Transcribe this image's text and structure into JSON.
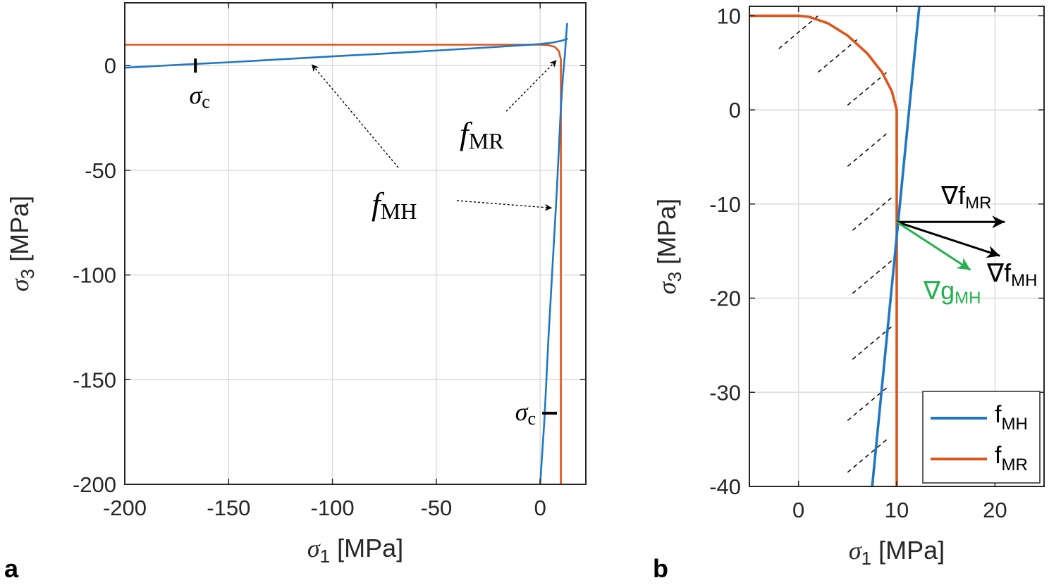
{
  "colors": {
    "f_MH": "#1f77c4",
    "f_MR": "#e0541b",
    "grad_g": "#22b14c",
    "axis": "#262626",
    "grid": "#dcdcdc"
  },
  "chart_data": [
    {
      "panel_label": "a",
      "type": "line",
      "xlabel_symbol": "σ",
      "xlabel_sub": "1",
      "xlabel_unit": "[MPa]",
      "ylabel_symbol": "σ",
      "ylabel_sub": "3",
      "ylabel_unit": "[MPa]",
      "xlim": [
        -200,
        22
      ],
      "ylim": [
        -200,
        30
      ],
      "xticks": [
        -200,
        -150,
        -100,
        -50,
        0
      ],
      "xtick_labels": [
        "-200",
        "-150",
        "-100",
        "-50",
        "0"
      ],
      "yticks": [
        -200,
        -150,
        -100,
        -50,
        0
      ],
      "ytick_labels": [
        "-200",
        "-150",
        "-100",
        "-50",
        "0"
      ],
      "grid": true,
      "series": [
        {
          "name": "f_MR",
          "x": [
            -200,
            -100,
            -20,
            0,
            4,
            7,
            9,
            10,
            10,
            10
          ],
          "y": [
            10,
            10,
            10,
            10,
            9.8,
            9,
            7,
            3,
            0,
            -200
          ]
        },
        {
          "name": "f_MH",
          "x": [
            -200,
            -166,
            -150,
            -120,
            -100,
            -80,
            -60,
            -40,
            -20,
            -10,
            0,
            6,
            10,
            13
          ],
          "y": [
            -1,
            0.8,
            1.6,
            3.3,
            4.4,
            5.5,
            6.6,
            7.8,
            9,
            9.7,
            10.3,
            11,
            11.8,
            12.8
          ]
        },
        {
          "name": "f_MH",
          "x": [
            0,
            2,
            4,
            6,
            8,
            9,
            10,
            11,
            12,
            12.5,
            13
          ],
          "y": [
            -200,
            -170,
            -130,
            -95,
            -60,
            -40,
            -20,
            -5,
            6,
            14,
            20
          ]
        }
      ],
      "markers": [
        {
          "label_symbol": "σ",
          "label_sub": "c",
          "x": -166,
          "y": 0,
          "orientation": "vertical"
        },
        {
          "label_symbol": "σ",
          "label_sub": "c",
          "x": 2,
          "y": -166,
          "orientation": "horizontal"
        }
      ],
      "annotations": [
        {
          "text_main": "f",
          "text_sub": "MR",
          "target_x": 10,
          "target_y": 6
        },
        {
          "text_main": "f",
          "text_sub": "MH",
          "targets": [
            [
              -110,
              2
            ],
            [
              5,
              -68
            ]
          ]
        }
      ]
    },
    {
      "panel_label": "b",
      "type": "line",
      "xlabel_symbol": "σ",
      "xlabel_sub": "1",
      "xlabel_unit": "[MPa]",
      "ylabel_symbol": "σ",
      "ylabel_sub": "3",
      "ylabel_unit": "[MPa]",
      "xlim": [
        -5,
        25
      ],
      "ylim": [
        -40,
        11
      ],
      "xticks": [
        0,
        10,
        20
      ],
      "xtick_labels": [
        "0",
        "10",
        "20"
      ],
      "yticks": [
        -40,
        -30,
        -20,
        -10,
        0,
        10
      ],
      "ytick_labels": [
        "-40",
        "-30",
        "-20",
        "-10",
        "0",
        "10"
      ],
      "grid": true,
      "legend": {
        "placement": "bottom-right",
        "entries": [
          {
            "main": "f",
            "sub": "MH"
          },
          {
            "main": "f",
            "sub": "MR"
          }
        ]
      },
      "series": [
        {
          "name": "f_MR",
          "x": [
            -5,
            0,
            1,
            3,
            5,
            7,
            8.5,
            9.5,
            10,
            10
          ],
          "y": [
            10,
            10,
            9.9,
            9.2,
            7.9,
            6,
            4,
            2,
            0,
            -40
          ]
        },
        {
          "name": "f_MH",
          "x": [
            7.5,
            12.3
          ],
          "y": [
            -40,
            11
          ]
        }
      ],
      "arrows": [
        {
          "name": "∇f",
          "sub": "MR",
          "from": [
            10,
            -11.9
          ],
          "to": [
            21,
            -11.9
          ]
        },
        {
          "name": "∇f",
          "sub": "MH",
          "from": [
            10,
            -11.9
          ],
          "to": [
            20.5,
            -15.5
          ]
        },
        {
          "name": "∇g",
          "sub": "MH",
          "from": [
            10,
            -11.9
          ],
          "to": [
            17.5,
            -17
          ]
        }
      ],
      "hatch_segments": [
        [
          [
            -2,
            6.5
          ],
          [
            2,
            10
          ]
        ],
        [
          [
            2,
            4
          ],
          [
            6,
            7.5
          ]
        ],
        [
          [
            5,
            0.5
          ],
          [
            9,
            4
          ]
        ],
        [
          [
            5,
            -6
          ],
          [
            9,
            -2.5
          ]
        ],
        [
          [
            5.5,
            -12.8
          ],
          [
            9.5,
            -9.3
          ]
        ],
        [
          [
            5.5,
            -19.5
          ],
          [
            9.5,
            -16
          ]
        ],
        [
          [
            5.5,
            -26.5
          ],
          [
            9.5,
            -23
          ]
        ],
        [
          [
            5,
            -33
          ],
          [
            9,
            -29.5
          ]
        ],
        [
          [
            5,
            -38.5
          ],
          [
            9,
            -35
          ]
        ]
      ]
    }
  ]
}
